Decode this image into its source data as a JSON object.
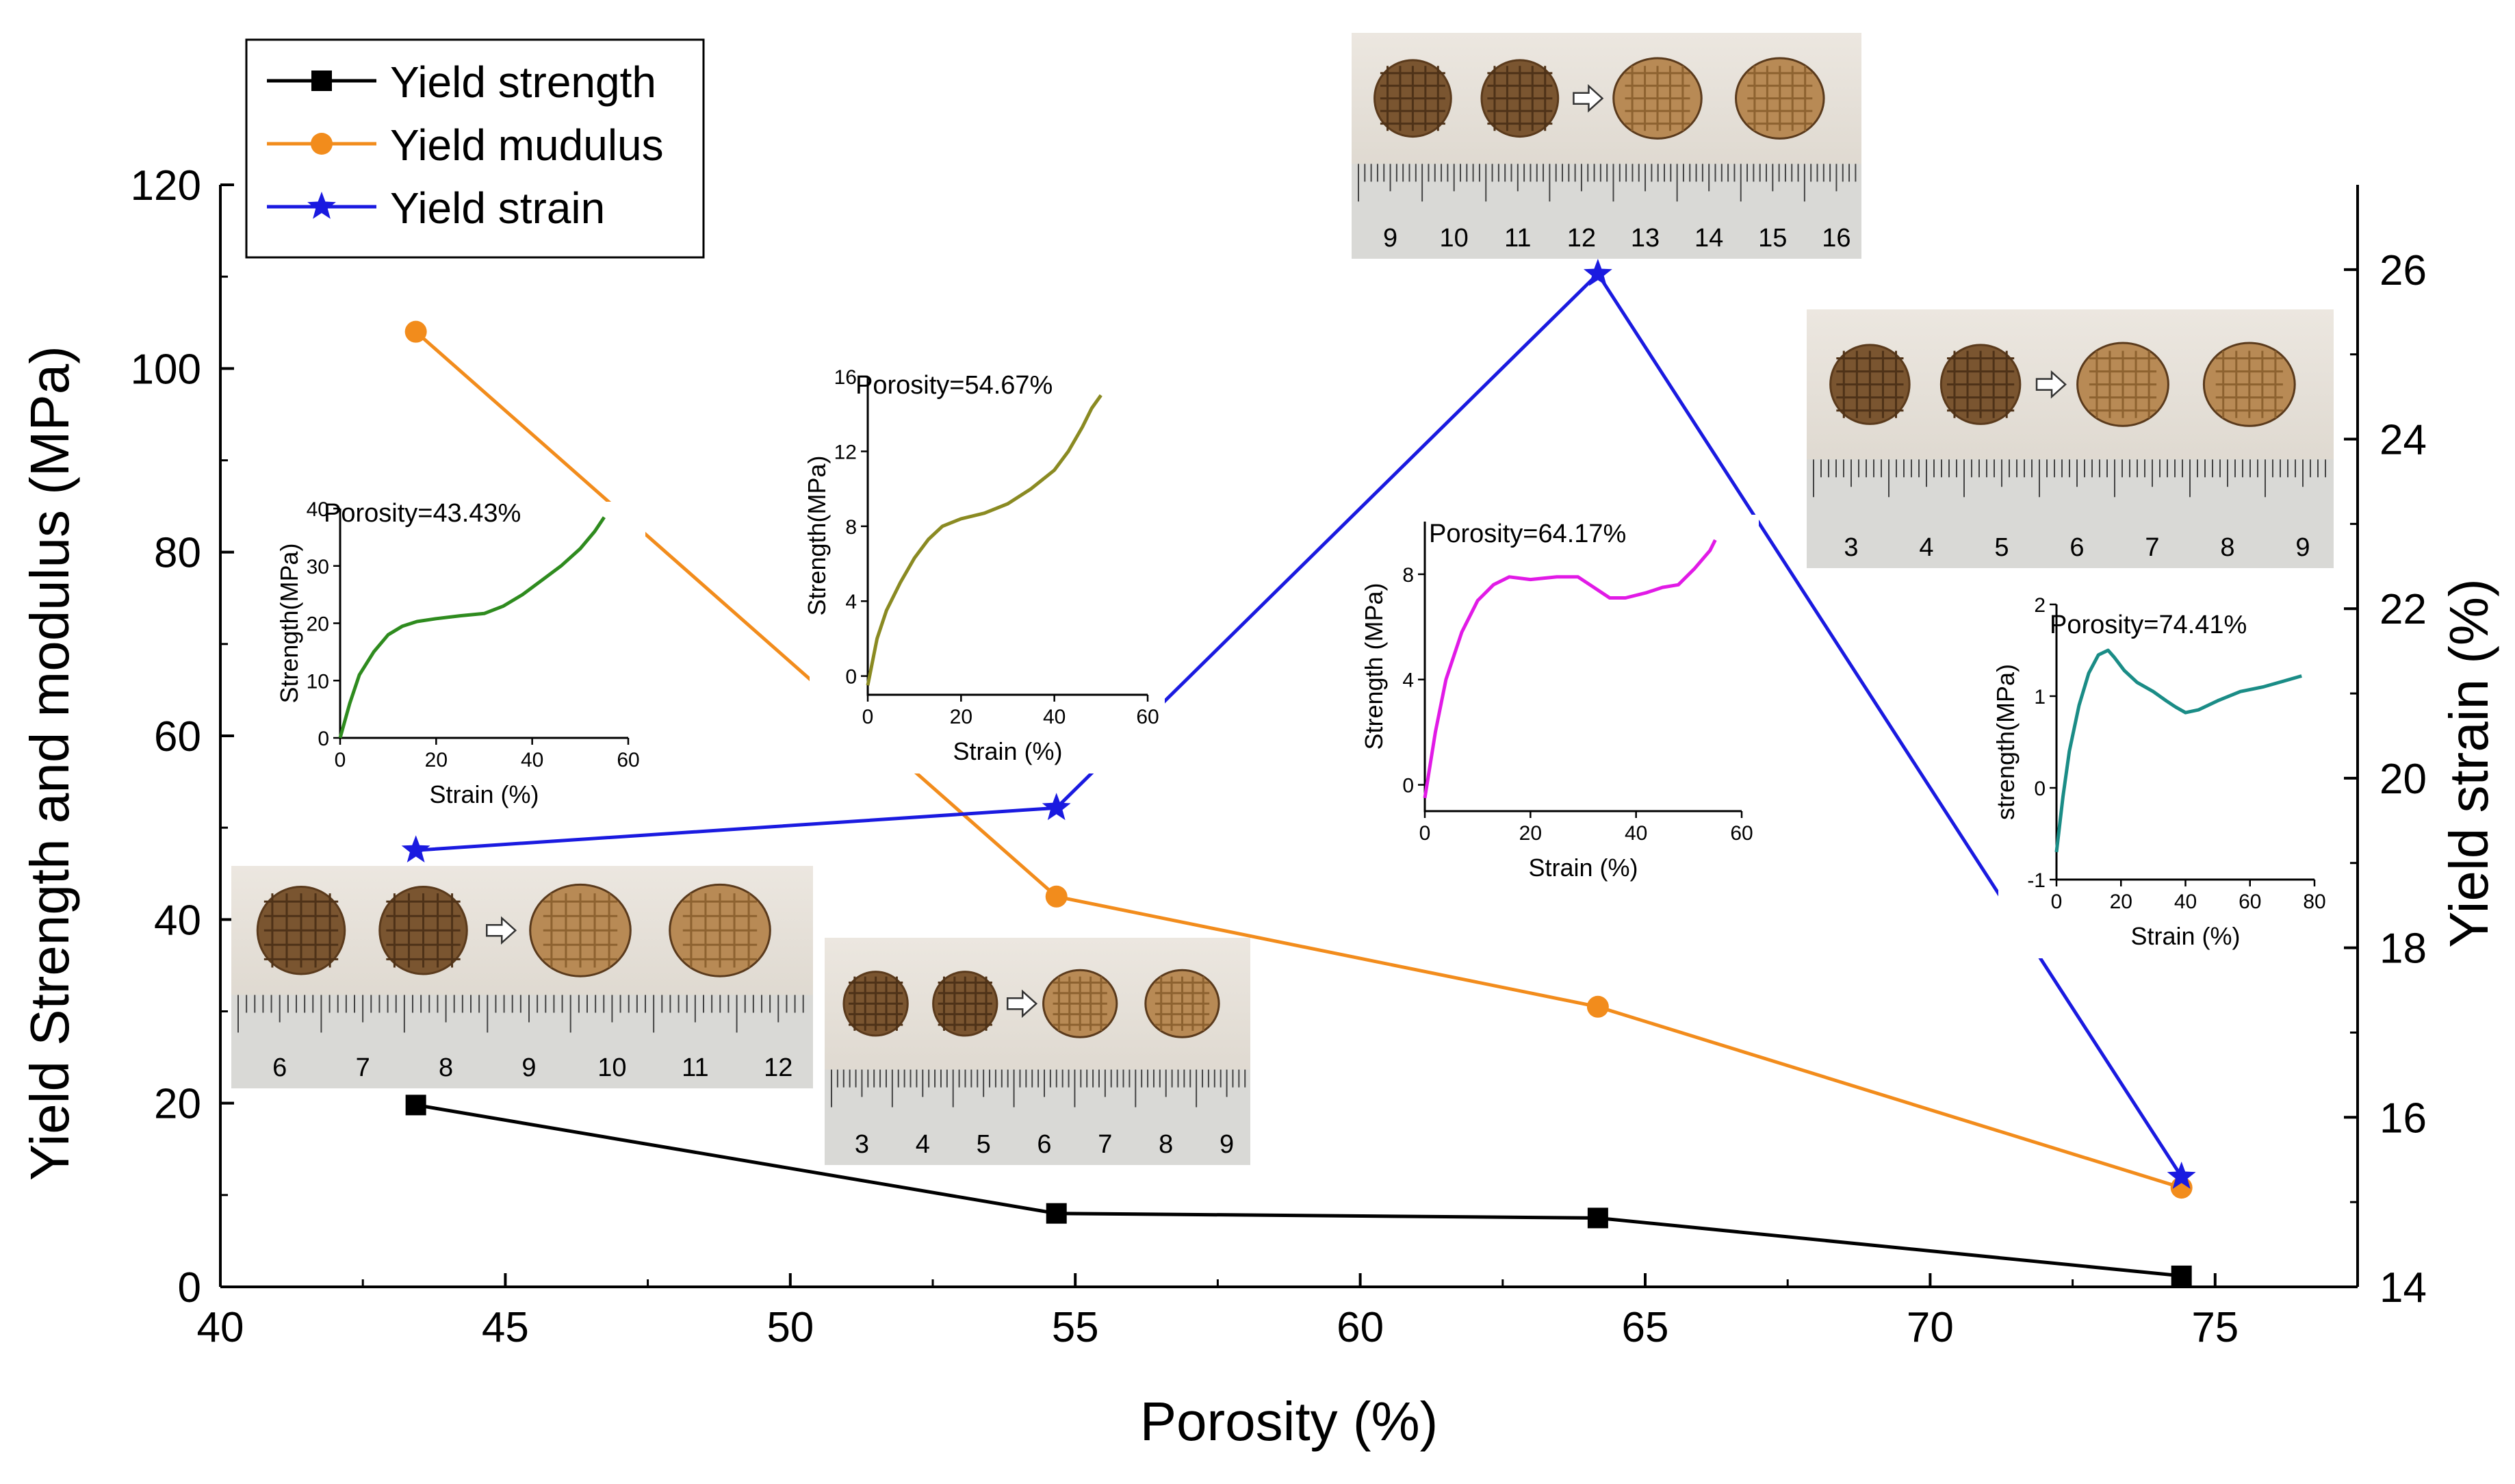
{
  "chart_data": {
    "type": "line",
    "title": "",
    "xlabel": "Porosity (%)",
    "ylabel": "Yield Strength and modulus (MPa)",
    "y2label": "Yield strain (%)",
    "xlim": [
      40,
      77.5
    ],
    "ylim": [
      0,
      120
    ],
    "y2lim": [
      14,
      27
    ],
    "x_ticks": [
      40,
      45,
      50,
      55,
      60,
      65,
      70,
      75
    ],
    "y_ticks": [
      0,
      20,
      40,
      60,
      80,
      100,
      120
    ],
    "y2_ticks": [
      14,
      16,
      18,
      20,
      22,
      24,
      26
    ],
    "x": [
      43.43,
      54.67,
      64.17,
      74.41
    ],
    "series": [
      {
        "name": "Yield strength",
        "axis": "left",
        "color": "#000000",
        "marker": "square",
        "values": [
          19.8,
          8.0,
          7.5,
          1.2
        ]
      },
      {
        "name": "Yield mudulus",
        "axis": "left",
        "color": "#f28c1c",
        "marker": "circle",
        "values": [
          104,
          42.5,
          30.5,
          10.8
        ]
      },
      {
        "name": "Yield strain",
        "axis": "right",
        "color": "#1a1ae0",
        "marker": "star",
        "values": [
          19.15,
          19.65,
          25.95,
          15.3
        ]
      }
    ],
    "legend": {
      "position": "top-left"
    },
    "insets": [
      {
        "label": "Porosity=43.43%",
        "color": "#2e8b1e",
        "xlabel": "Strain (%)",
        "ylabel": "Strength(MPa)",
        "xlim": [
          0,
          60
        ],
        "ylim": [
          0,
          40
        ],
        "x_ticks": [
          0,
          20,
          40,
          60
        ],
        "y_ticks": [
          0,
          10,
          20,
          30,
          40
        ],
        "curve": [
          [
            0,
            0
          ],
          [
            2,
            6
          ],
          [
            4,
            11
          ],
          [
            7,
            15
          ],
          [
            10,
            18
          ],
          [
            13,
            19.5
          ],
          [
            16,
            20.3
          ],
          [
            20,
            20.8
          ],
          [
            25,
            21.3
          ],
          [
            30,
            21.7
          ],
          [
            34,
            23
          ],
          [
            38,
            25
          ],
          [
            42,
            27.5
          ],
          [
            46,
            30
          ],
          [
            50,
            33
          ],
          [
            53,
            36
          ],
          [
            55,
            38.5
          ]
        ]
      },
      {
        "label": "Porosity=54.67%",
        "color": "#8a8a22",
        "xlabel": "Strain (%)",
        "ylabel": "Strength(MPa)",
        "xlim": [
          0,
          60
        ],
        "ylim": [
          -1,
          16
        ],
        "x_ticks": [
          0,
          20,
          40,
          60
        ],
        "y_ticks": [
          0,
          4,
          8,
          12,
          16
        ],
        "curve": [
          [
            0,
            -0.5
          ],
          [
            2,
            2
          ],
          [
            4,
            3.5
          ],
          [
            7,
            5
          ],
          [
            10,
            6.3
          ],
          [
            13,
            7.3
          ],
          [
            16,
            8
          ],
          [
            20,
            8.4
          ],
          [
            25,
            8.7
          ],
          [
            30,
            9.2
          ],
          [
            35,
            10
          ],
          [
            40,
            11
          ],
          [
            43,
            12
          ],
          [
            46,
            13.3
          ],
          [
            48,
            14.3
          ],
          [
            50,
            15
          ]
        ]
      },
      {
        "label": "Porosity=64.17%",
        "color": "#e11ae6",
        "xlabel": "Strain (%)",
        "ylabel": "Strength (MPa)",
        "xlim": [
          0,
          60
        ],
        "ylim": [
          -1,
          10
        ],
        "x_ticks": [
          0,
          20,
          40,
          60
        ],
        "y_ticks": [
          0,
          4,
          8
        ],
        "curve": [
          [
            0,
            -0.5
          ],
          [
            2,
            2
          ],
          [
            4,
            4
          ],
          [
            7,
            5.8
          ],
          [
            10,
            7
          ],
          [
            13,
            7.6
          ],
          [
            16,
            7.9
          ],
          [
            20,
            7.8
          ],
          [
            25,
            7.9
          ],
          [
            29,
            7.9
          ],
          [
            32,
            7.5
          ],
          [
            35,
            7.1
          ],
          [
            38,
            7.1
          ],
          [
            42,
            7.3
          ],
          [
            45,
            7.5
          ],
          [
            48,
            7.6
          ],
          [
            51,
            8.2
          ],
          [
            54,
            8.9
          ],
          [
            55,
            9.3
          ]
        ]
      },
      {
        "label": "Porosity=74.41%",
        "color": "#1a8c86",
        "xlabel": "Strain (%)",
        "ylabel": "strength(MPa)",
        "xlim": [
          0,
          80
        ],
        "ylim": [
          -1,
          2
        ],
        "x_ticks": [
          0,
          20,
          40,
          60,
          80
        ],
        "y_ticks": [
          -1,
          0,
          1,
          2
        ],
        "curve": [
          [
            0,
            -0.7
          ],
          [
            2,
            -0.1
          ],
          [
            4,
            0.4
          ],
          [
            7,
            0.9
          ],
          [
            10,
            1.25
          ],
          [
            13,
            1.45
          ],
          [
            16,
            1.5
          ],
          [
            18,
            1.42
          ],
          [
            21,
            1.28
          ],
          [
            25,
            1.15
          ],
          [
            30,
            1.05
          ],
          [
            34,
            0.95
          ],
          [
            37,
            0.88
          ],
          [
            40,
            0.82
          ],
          [
            44,
            0.85
          ],
          [
            50,
            0.95
          ],
          [
            57,
            1.05
          ],
          [
            64,
            1.1
          ],
          [
            70,
            1.16
          ],
          [
            76,
            1.22
          ]
        ]
      }
    ],
    "photos": [
      {
        "ruler_numbers": [
          "6",
          "7",
          "8",
          "9",
          "10",
          "11",
          "12"
        ]
      },
      {
        "ruler_numbers": [
          "3",
          "4",
          "5",
          "6",
          "7",
          "8",
          "9"
        ]
      },
      {
        "ruler_numbers": [
          "9",
          "10",
          "11",
          "12",
          "13",
          "14",
          "15",
          "16"
        ]
      },
      {
        "ruler_numbers": [
          "3",
          "4",
          "5",
          "6",
          "7",
          "8",
          "9"
        ]
      }
    ]
  }
}
